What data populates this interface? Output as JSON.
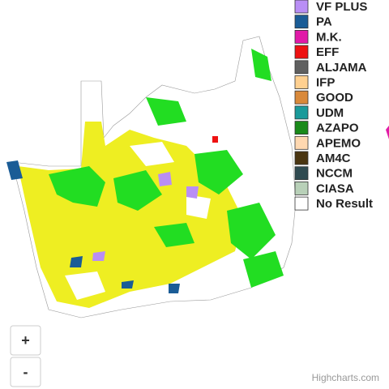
{
  "legend": {
    "items": [
      {
        "name": "VF PLUS",
        "color": "#b98ef5"
      },
      {
        "name": "PA",
        "color": "#1a5c96"
      },
      {
        "name": "M.K.",
        "color": "#e11aa8"
      },
      {
        "name": "EFF",
        "color": "#ee1111"
      },
      {
        "name": "ALJAMA",
        "color": "#606060"
      },
      {
        "name": "IFP",
        "color": "#ffd090"
      },
      {
        "name": "GOOD",
        "color": "#d9893a"
      },
      {
        "name": "UDM",
        "color": "#1a9a9a"
      },
      {
        "name": "AZAPO",
        "color": "#1a8a1a"
      },
      {
        "name": "APEMO",
        "color": "#ffd8b0"
      },
      {
        "name": "AM4C",
        "color": "#4a3510"
      },
      {
        "name": "NCCM",
        "color": "#2f4a50"
      },
      {
        "name": "CIASA",
        "color": "#b8d0b8"
      },
      {
        "name": "No Result",
        "color": "#ffffff"
      }
    ]
  },
  "zoom": {
    "in": "+",
    "out": "-"
  },
  "credits": "Highcharts.com"
}
